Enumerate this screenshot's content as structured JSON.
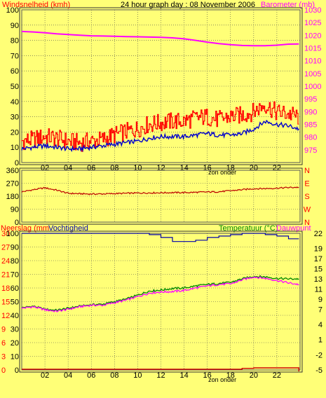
{
  "colors": {
    "background": "#ffff77",
    "grid": "#4a4a4a",
    "wind_gust": "#ff0000",
    "wind_avg": "#0000cc",
    "barometer": "#ff00ff",
    "direction": "#bb0000",
    "rain": "#cc0000",
    "humidity": "#0000aa",
    "temperature": "#008800",
    "dewpoint": "#ff00ff",
    "label_red": "#ff0000",
    "label_magenta": "#ff00ff",
    "label_green": "#008800"
  },
  "header": {
    "wind_label": "Windsnelheid (kmh)",
    "title": "24 hour graph day : 08 November 2006",
    "barometer_label": "Barometer (mb)"
  },
  "hours": [
    "02",
    "04",
    "06",
    "08",
    "10",
    "12",
    "14",
    "16",
    "18",
    "20",
    "22"
  ],
  "sunset_label": "zon onder",
  "chart_data": [
    {
      "type": "line",
      "name": "wind-barometer",
      "x_ticks": [
        "02",
        "04",
        "06",
        "08",
        "10",
        "12",
        "14",
        "16",
        "18",
        "20",
        "22"
      ],
      "left_axis": {
        "label": "Windsnelheid (kmh)",
        "ylim": [
          0,
          100
        ],
        "ticks": [
          "0",
          "10",
          "20",
          "30",
          "40",
          "50",
          "60",
          "70",
          "80",
          "90",
          "100"
        ]
      },
      "right_axis": {
        "label": "Barometer (mb)",
        "ylim": [
          970,
          1030
        ],
        "ticks": [
          "975",
          "980",
          "985",
          "990",
          "995",
          "1000",
          "1005",
          "1010",
          "1015",
          "1020",
          "1025",
          "1030"
        ]
      },
      "x": [
        0,
        1,
        2,
        3,
        4,
        5,
        6,
        7,
        8,
        9,
        10,
        11,
        12,
        13,
        14,
        15,
        16,
        17,
        18,
        19,
        20,
        21,
        22,
        23,
        23.9
      ],
      "series": [
        {
          "axis": "right",
          "color": "#ff00ff",
          "values": [
            1021.5,
            1021.3,
            1021,
            1020.6,
            1020.3,
            1020,
            1019.8,
            1019.7,
            1019.6,
            1019.5,
            1019.4,
            1019.3,
            1019.2,
            1019,
            1018.6,
            1018,
            1017.3,
            1016.7,
            1016.3,
            1016,
            1015.9,
            1015.9,
            1016.1,
            1016.5,
            1016.6
          ]
        },
        {
          "axis": "left",
          "color": "#ff0000",
          "values": [
            14,
            15,
            17,
            16,
            14,
            13,
            14,
            15,
            18,
            20,
            22,
            25,
            26,
            27,
            27,
            29,
            30,
            28,
            30,
            31,
            33,
            38,
            33,
            32,
            30
          ]
        },
        {
          "axis": "left",
          "color": "#0000cc",
          "values": [
            9,
            10,
            11,
            10,
            9,
            9,
            10,
            11,
            12,
            13,
            14,
            16,
            17,
            17,
            17,
            18,
            19,
            18,
            18,
            19,
            22,
            27,
            25,
            24,
            22
          ]
        }
      ]
    },
    {
      "type": "line",
      "name": "wind-direction",
      "left_axis": {
        "ylim": [
          0,
          360
        ],
        "ticks": [
          "0",
          "90",
          "180",
          "270",
          "360"
        ]
      },
      "right_axis": {
        "ticks": [
          "N",
          "W",
          "S",
          "E",
          "N"
        ]
      },
      "x": [
        0,
        1,
        2,
        3,
        4,
        5,
        6,
        7,
        8,
        9,
        10,
        11,
        12,
        13,
        14,
        15,
        16,
        17,
        18,
        19,
        20,
        21,
        22,
        23,
        23.9
      ],
      "series": [
        {
          "color": "#bb0000",
          "values": [
            210,
            225,
            238,
            222,
            200,
            197,
            195,
            196,
            198,
            200,
            202,
            203,
            204,
            205,
            205,
            207,
            209,
            211,
            218,
            225,
            232,
            233,
            236,
            240,
            242
          ]
        }
      ]
    },
    {
      "type": "line",
      "name": "rain-humidity-temperature",
      "x_ticks": [
        "02",
        "04",
        "06",
        "08",
        "10",
        "12",
        "14",
        "16",
        "18",
        "20",
        "22"
      ],
      "left_axis": {
        "label": "Neerslag (mm)",
        "ylim": [
          0,
          30
        ],
        "ticks": [
          "0",
          "3",
          "6",
          "9",
          "12",
          "15",
          "18",
          "21",
          "24",
          "27",
          "30"
        ]
      },
      "left_axis_2": {
        "label": "Vochtigheid",
        "ylim": [
          0,
          100
        ],
        "ticks": [
          "0",
          "10",
          "20",
          "30",
          "40",
          "50",
          "60",
          "70",
          "80",
          "90",
          "100"
        ]
      },
      "right_axis": {
        "label": "Temperatuur (°C)",
        "ylim": [
          -5,
          22
        ],
        "ticks": [
          "-5",
          "-2",
          "1",
          "4",
          "7",
          "9",
          "11",
          "13",
          "15",
          "17",
          "19",
          "22"
        ]
      },
      "right_label_2": "Dauwpunt",
      "x": [
        0,
        1,
        2,
        3,
        4,
        5,
        6,
        7,
        8,
        9,
        10,
        11,
        12,
        13,
        14,
        15,
        16,
        17,
        18,
        19,
        20,
        21,
        22,
        23,
        23.9
      ],
      "series": [
        {
          "axis": "left_2",
          "color": "#0000aa",
          "values": [
            100,
            100,
            100,
            100,
            100,
            100,
            100,
            100,
            100,
            100,
            100,
            99,
            97,
            94,
            94,
            95,
            97,
            98,
            99,
            100,
            100,
            99,
            98,
            96,
            96
          ]
        },
        {
          "axis": "right",
          "color": "#008800",
          "values": [
            7.3,
            7.6,
            7.0,
            6.8,
            7.2,
            7.6,
            7.9,
            8.0,
            8.5,
            9.0,
            9.8,
            10.6,
            10.8,
            11.1,
            11.2,
            11.6,
            11.9,
            12.1,
            12.3,
            13.0,
            13.5,
            13.4,
            13.1,
            13.0,
            13.0
          ]
        },
        {
          "axis": "right",
          "color": "#ff00ff",
          "values": [
            7.2,
            7.5,
            6.9,
            6.6,
            7.0,
            7.5,
            7.8,
            7.8,
            8.3,
            8.8,
            9.5,
            10.2,
            10.4,
            10.5,
            10.7,
            11.2,
            11.6,
            11.9,
            12.0,
            12.8,
            13.4,
            13.1,
            12.7,
            12.2,
            11.9
          ]
        },
        {
          "axis": "left",
          "color": "#cc0000",
          "values": [
            0,
            0,
            0,
            0,
            0,
            0,
            0,
            0,
            0,
            0,
            0,
            0,
            0,
            0,
            0,
            0,
            0,
            0,
            0,
            0.2,
            0.3,
            0.3,
            0.3,
            0.3,
            0.3
          ]
        }
      ]
    }
  ],
  "bottom_header": {
    "rain_label": "Neerslag (mm",
    "humidity_label": "Vochtigheid",
    "temp_label": "Temperatuur (°C)",
    "dew_label": "Dauwpunt"
  }
}
